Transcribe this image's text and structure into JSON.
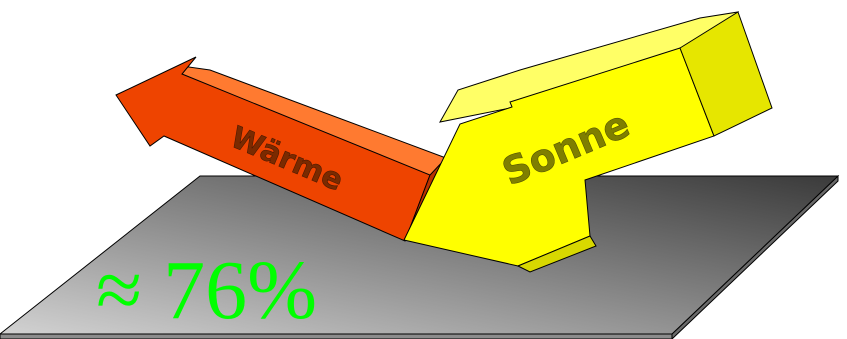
{
  "diagram": {
    "labels": {
      "heat": "Wärme",
      "sun": "Sonne",
      "percentage": "≈ 76%"
    },
    "colors": {
      "surface_light": "#d2d2d2",
      "surface_dark": "#3a3a3a",
      "surface_edge": "#8c8c8c",
      "heat_arrow_front": "#ee4400",
      "heat_arrow_side": "#b83200",
      "heat_text": "#7a2a00",
      "sun_arrow_front": "#ffff00",
      "sun_arrow_side": "#d8d800",
      "sun_text": "#7f7f00",
      "percentage_text": "#00ff00"
    }
  }
}
